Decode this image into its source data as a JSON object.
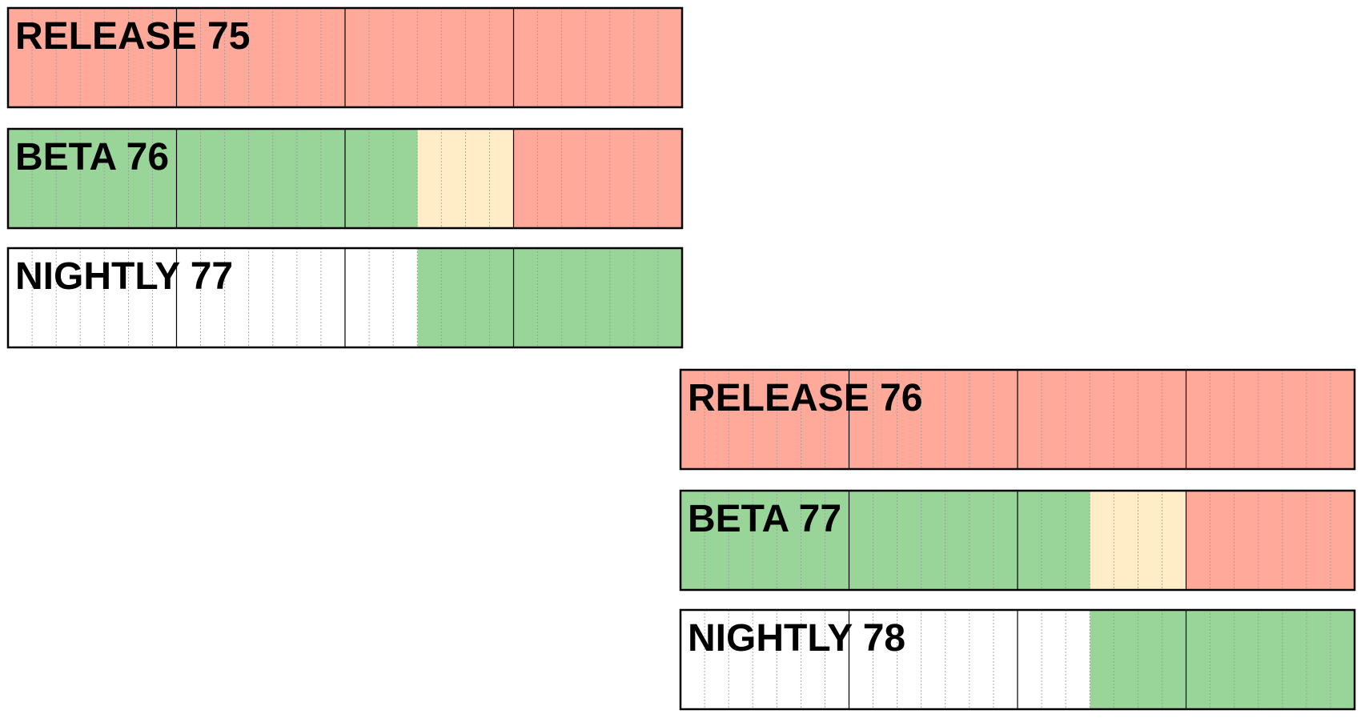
{
  "colors": {
    "release": "#ffa99a",
    "beta": "#99d498",
    "stabilization": "#feedc6",
    "empty": "#ffffff",
    "border": "#000000",
    "week_divider": "#000000",
    "day_divider": "#999999"
  },
  "bars": [
    {
      "label": "RELEASE 75",
      "segments": [
        {
          "state": "release",
          "weeks": 4
        }
      ]
    },
    {
      "label": "BETA 76",
      "segments": [
        {
          "state": "beta",
          "weeks": 2.43
        },
        {
          "state": "stabilization",
          "weeks": 0.57
        },
        {
          "state": "release",
          "weeks": 1
        }
      ]
    },
    {
      "label": "NIGHTLY 77",
      "segments": [
        {
          "state": "empty",
          "weeks": 2.43
        },
        {
          "state": "beta",
          "weeks": 1.57
        }
      ]
    },
    {
      "label": "RELEASE 76",
      "segments": [
        {
          "state": "release",
          "weeks": 4
        }
      ]
    },
    {
      "label": "BETA 77",
      "segments": [
        {
          "state": "beta",
          "weeks": 2.43
        },
        {
          "state": "stabilization",
          "weeks": 0.57
        },
        {
          "state": "release",
          "weeks": 1
        }
      ]
    },
    {
      "label": "NIGHTLY 78",
      "segments": [
        {
          "state": "empty",
          "weeks": 2.43
        },
        {
          "state": "beta",
          "weeks": 1.57
        }
      ]
    }
  ]
}
